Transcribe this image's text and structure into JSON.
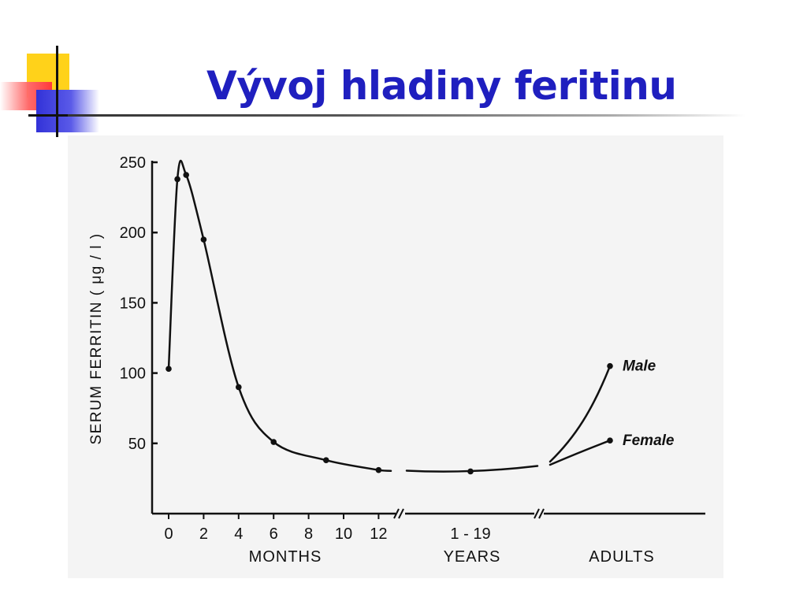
{
  "slide": {
    "title": "Vývoj hladiny feritinu"
  },
  "colors": {
    "title": "#1f1fbf",
    "ink": "#111111",
    "panel": "#f4f4f4",
    "deco_yellow": "#ffd21a",
    "deco_red": "#ff3a3a",
    "deco_blue": "#3232d8"
  },
  "chart_data": {
    "type": "line",
    "title": "",
    "ylabel": "SERUM FERRITIN ( μg / l )",
    "ylim": [
      0,
      250
    ],
    "yticks": [
      50,
      100,
      150,
      200,
      250
    ],
    "segments": [
      {
        "label": "MONTHS",
        "x_ticks": [
          0,
          2,
          4,
          6,
          8,
          10,
          12
        ],
        "x": [
          0,
          0.5,
          1,
          2,
          4,
          6,
          9,
          12
        ],
        "y": [
          103,
          238,
          241,
          195,
          90,
          51,
          38,
          31
        ]
      },
      {
        "label": "YEARS",
        "x_ticks": [
          "1 - 19"
        ],
        "x": [
          "1 - 19"
        ],
        "y": [
          30
        ]
      },
      {
        "label": "ADULTS",
        "x_ticks": [],
        "series": [
          {
            "name": "Male",
            "y": 105
          },
          {
            "name": "Female",
            "y": 52
          }
        ]
      }
    ]
  }
}
